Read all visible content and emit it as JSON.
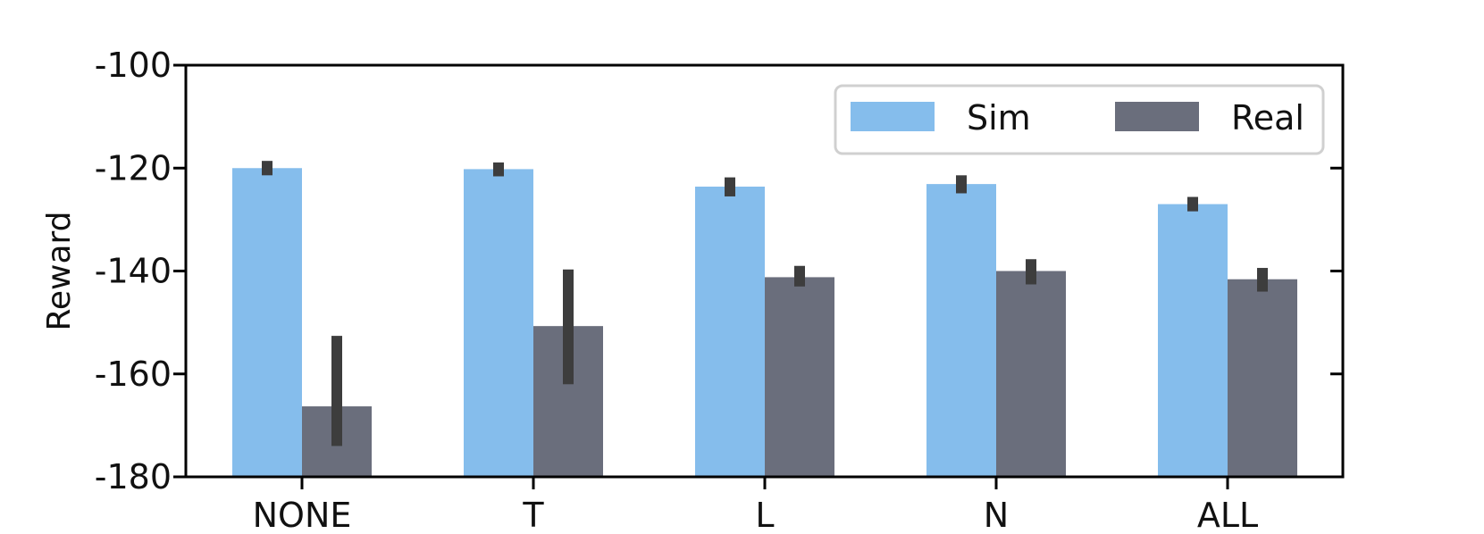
{
  "chart_data": {
    "type": "bar",
    "title": "",
    "xlabel": "",
    "ylabel": "Reward",
    "categories": [
      "NONE",
      "T",
      "L",
      "N",
      "ALL"
    ],
    "ylim": [
      -180,
      -100
    ],
    "yticks": [
      -180,
      -160,
      -140,
      -120,
      -100
    ],
    "series": [
      {
        "name": "Sim",
        "color": "#85bdec",
        "values": [
          -120,
          -120.2,
          -123.6,
          -123.1,
          -127
        ],
        "err_low": [
          -121.4,
          -121.6,
          -125.5,
          -124.9,
          -128.4
        ],
        "err_high": [
          -118.6,
          -118.9,
          -121.8,
          -121.4,
          -125.6
        ]
      },
      {
        "name": "Real",
        "color": "#6a6e7c",
        "values": [
          -166.3,
          -150.7,
          -141.2,
          -140.0,
          -141.6
        ],
        "err_low": [
          -174.0,
          -162.0,
          -143.0,
          -142.6,
          -144.0
        ],
        "err_high": [
          -152.6,
          -139.7,
          -139.0,
          -137.7,
          -139.4
        ]
      }
    ],
    "errorbar_color": "#3d3d3d",
    "grid": false,
    "legend": {
      "position": "top-right",
      "columns": 2
    }
  }
}
